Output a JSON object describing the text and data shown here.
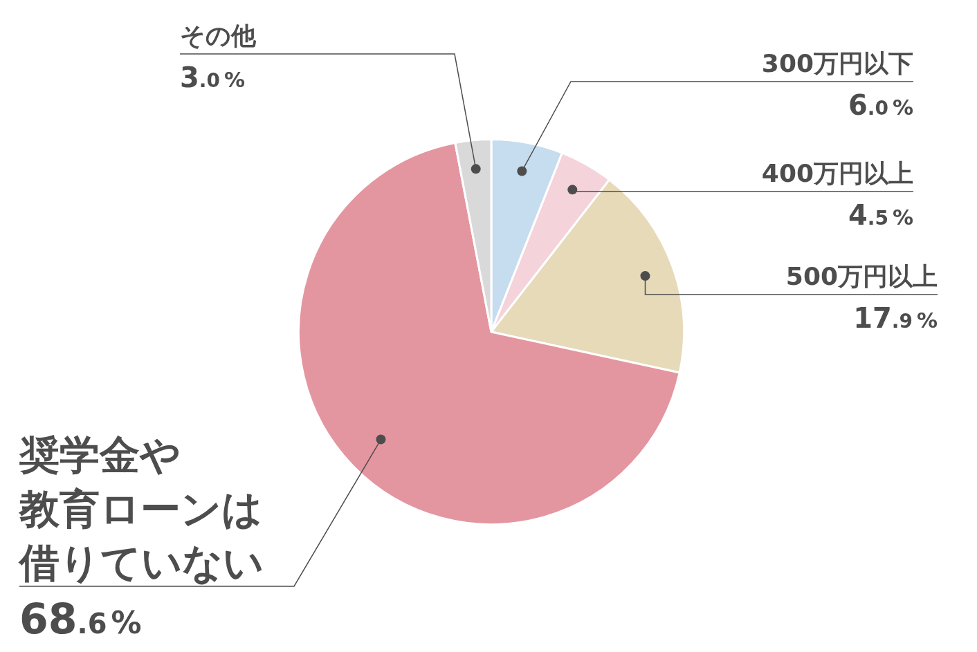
{
  "chart_data": {
    "type": "pie",
    "categories": [
      "300万円以下",
      "400万円以上",
      "500万円以上",
      "奨学金や教育ローンは借りていない",
      "その他"
    ],
    "values": [
      6.0,
      4.5,
      17.9,
      68.6,
      3.0
    ],
    "colors": [
      "#c6dcef",
      "#f4d3da",
      "#e6dab8",
      "#e496a0",
      "#d9d9d9"
    ],
    "value_labels": [
      "6.0%",
      "4.5%",
      "17.9%",
      "68.6%",
      "3.0%"
    ]
  }
}
